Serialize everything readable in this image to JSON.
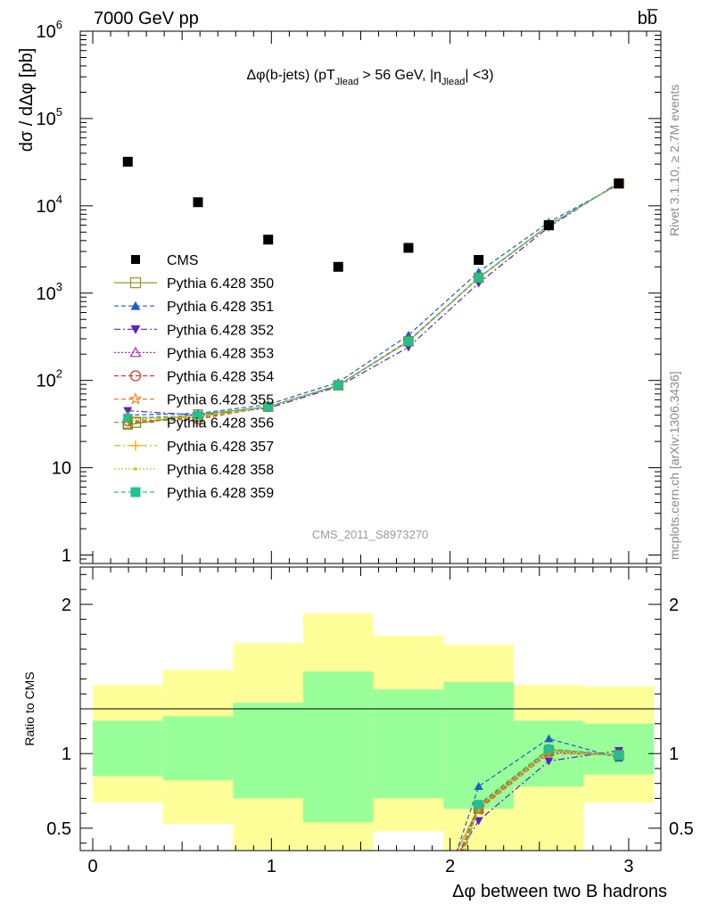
{
  "header": {
    "left": "7000 GeV pp",
    "right": "bb̅"
  },
  "side_labels": {
    "rivet": "Rivet 3.1.10, ≥ 2.7M events",
    "mcplots": "mcplots.cern.ch [arXiv:1306.3436]"
  },
  "chart_data": [
    {
      "type": "line",
      "panel": "main",
      "title": "Δφ(b-jets) (pT_Jlead > 56 GeV, |η_Jlead| <3)",
      "title_parts": {
        "pre": "Δφ(b-jets) (pT",
        "sub1": "Jlead",
        "mid": " >  56 GeV, |η",
        "sub2": "Jlead",
        "post": "| <3)"
      },
      "ylabel": "dσ / dΔφ [pb]",
      "y_scale": "log",
      "ylim": [
        0.8,
        1000000
      ],
      "xlim": [
        -0.07,
        3.18
      ],
      "y_ticks": [
        {
          "v": 1,
          "base": "1",
          "exp": ""
        },
        {
          "v": 10,
          "base": "10",
          "exp": ""
        },
        {
          "v": 100,
          "base": "10",
          "exp": "2"
        },
        {
          "v": 1000,
          "base": "10",
          "exp": "3"
        },
        {
          "v": 10000,
          "base": "10",
          "exp": "4"
        },
        {
          "v": 100000,
          "base": "10",
          "exp": "5"
        },
        {
          "v": 1000000,
          "base": "10",
          "exp": "6"
        }
      ],
      "x": [
        0.196,
        0.589,
        0.982,
        1.374,
        1.767,
        2.16,
        2.553,
        2.945
      ],
      "series": [
        {
          "name": "CMS",
          "color": "#000000",
          "marker": "square-filled",
          "dash": "none",
          "values": [
            32000,
            11000,
            4100,
            2000,
            3300,
            2400,
            6000,
            18000
          ]
        },
        {
          "name": "Pythia 6.428 350",
          "color": "#999933",
          "marker": "square-open",
          "dash": "solid",
          "values": [
            31,
            41,
            50,
            88,
            280,
            1500,
            6000,
            18000
          ]
        },
        {
          "name": "Pythia 6.428 351",
          "color": "#1f5fc4",
          "marker": "triangle-up-filled",
          "dash": "dash",
          "values": [
            40,
            42,
            53,
            95,
            330,
            1750,
            6500,
            17500
          ]
        },
        {
          "name": "Pythia 6.428 352",
          "color": "#5a23c8",
          "marker": "triangle-down-filled",
          "dash": "dashdot",
          "values": [
            45,
            40,
            48,
            85,
            240,
            1300,
            5700,
            18500
          ]
        },
        {
          "name": "Pythia 6.428 353",
          "color": "#b02ab0",
          "marker": "triangle-up-open",
          "dash": "dot",
          "values": [
            37,
            38,
            50,
            88,
            280,
            1500,
            6000,
            18000
          ]
        },
        {
          "name": "Pythia 6.428 354",
          "color": "#e03030",
          "marker": "circle-open",
          "dash": "dash",
          "values": [
            34,
            36,
            50,
            88,
            285,
            1500,
            6000,
            18000
          ]
        },
        {
          "name": "Pythia 6.428 355",
          "color": "#f07b20",
          "marker": "star-open",
          "dash": "dash",
          "values": [
            38,
            37,
            50,
            87,
            280,
            1480,
            5950,
            18000
          ]
        },
        {
          "name": "Pythia 6.428 356",
          "color": "#7a8a1a",
          "marker": "square-open",
          "dash": "dash",
          "values": [
            32,
            38,
            50,
            88,
            280,
            1500,
            6000,
            18000
          ]
        },
        {
          "name": "Pythia 6.428 357",
          "color": "#e0b000",
          "marker": "plus",
          "dash": "dashdot",
          "values": [
            35,
            38,
            50,
            88,
            280,
            1500,
            6000,
            18000
          ]
        },
        {
          "name": "Pythia 6.428 358",
          "color": "#c8c81e",
          "marker": "dot",
          "dash": "dot",
          "values": [
            36,
            39,
            50,
            88,
            280,
            1500,
            6000,
            18000
          ]
        },
        {
          "name": "Pythia 6.428 359",
          "color": "#20c090",
          "marker": "square-filled",
          "dash": "dash",
          "values": [
            37,
            40,
            50,
            88,
            280,
            1500,
            6000,
            18000
          ]
        }
      ],
      "watermark": "CMS_2011_S8973270",
      "legend": "left"
    },
    {
      "type": "line",
      "panel": "ratio",
      "ylabel": "Ratio to CMS",
      "xlabel": "Δφ between two B hadrons",
      "ylim": [
        0.35,
        2.25
      ],
      "xlim": [
        -0.07,
        3.18
      ],
      "x_ticks": [
        0,
        1,
        2,
        3
      ],
      "y_ticks": [
        0.5,
        1,
        2
      ],
      "bins": [
        0,
        0.3927,
        0.7854,
        1.1781,
        1.5708,
        1.9635,
        2.3562,
        2.7489,
        3.1416
      ],
      "band_inner": [
        [
          0.85,
          1.22
        ],
        [
          0.82,
          1.25
        ],
        [
          0.7,
          1.34
        ],
        [
          0.54,
          1.55
        ],
        [
          0.7,
          1.43
        ],
        [
          0.63,
          1.48
        ],
        [
          0.78,
          1.22
        ],
        [
          0.86,
          1.2
        ]
      ],
      "band_outer": [
        [
          0.67,
          1.46
        ],
        [
          0.53,
          1.56
        ],
        [
          0.35,
          1.74
        ],
        [
          0.35,
          1.94
        ],
        [
          0.48,
          1.79
        ],
        [
          0.35,
          1.73
        ],
        [
          0.35,
          1.46
        ],
        [
          0.67,
          1.45
        ]
      ],
      "x": [
        2.16,
        2.553,
        2.945
      ],
      "series": [
        {
          "name": "Pythia 6.428 350",
          "values": [
            0.64,
            1.02,
            0.99
          ]
        },
        {
          "name": "Pythia 6.428 351",
          "values": [
            0.78,
            1.1,
            0.97
          ]
        },
        {
          "name": "Pythia 6.428 352",
          "values": [
            0.55,
            0.95,
            1.02
          ]
        },
        {
          "name": "Pythia 6.428 353",
          "values": [
            0.63,
            1.01,
            0.99
          ]
        },
        {
          "name": "Pythia 6.428 354",
          "values": [
            0.65,
            1.03,
            0.99
          ]
        },
        {
          "name": "Pythia 6.428 355",
          "values": [
            0.62,
            1.0,
            0.99
          ]
        },
        {
          "name": "Pythia 6.428 356",
          "values": [
            0.63,
            1.02,
            0.99
          ]
        },
        {
          "name": "Pythia 6.428 357",
          "values": [
            0.64,
            1.02,
            0.99
          ]
        },
        {
          "name": "Pythia 6.428 358",
          "values": [
            0.64,
            1.02,
            0.99
          ]
        },
        {
          "name": "Pythia 6.428 359",
          "values": [
            0.66,
            1.03,
            0.99
          ]
        }
      ]
    }
  ]
}
